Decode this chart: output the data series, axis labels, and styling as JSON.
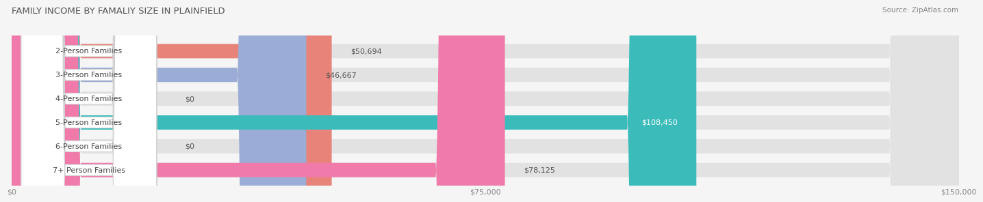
{
  "title": "FAMILY INCOME BY FAMALIY SIZE IN PLAINFIELD",
  "source": "Source: ZipAtlas.com",
  "categories": [
    "2-Person Families",
    "3-Person Families",
    "4-Person Families",
    "5-Person Families",
    "6-Person Families",
    "7+ Person Families"
  ],
  "values": [
    50694,
    46667,
    0,
    108450,
    0,
    78125
  ],
  "bar_colors": [
    "#E8837A",
    "#9BADD6",
    "#C4A8D4",
    "#3BBCBB",
    "#AAAEE0",
    "#F07BAA"
  ],
  "x_max": 150000,
  "x_ticks": [
    0,
    75000,
    150000
  ],
  "x_tick_labels": [
    "$0",
    "$75,000",
    "$150,000"
  ],
  "background_color": "#f5f5f5",
  "bar_bg_color": "#e2e2e2",
  "label_fontsize": 8.0,
  "title_fontsize": 9.5,
  "source_fontsize": 7.5
}
